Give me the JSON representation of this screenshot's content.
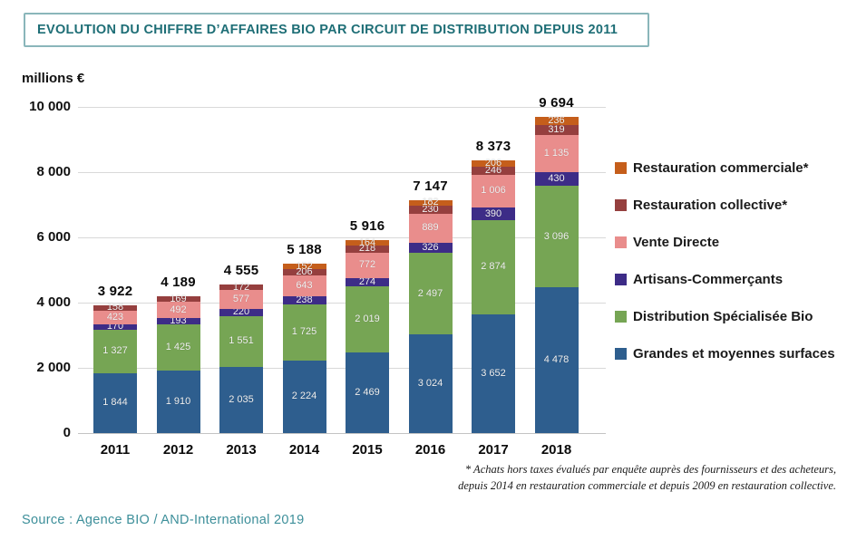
{
  "header": {
    "title": "EVOLUTION DU CHIFFRE D’AFFAIRES BIO PAR CIRCUIT DE DISTRIBUTION DEPUIS 2011"
  },
  "chart_data": {
    "type": "bar",
    "stacked": true,
    "title": "EVOLUTION DU CHIFFRE D’AFFAIRES BIO PAR CIRCUIT DE DISTRIBUTION DEPUIS 2011",
    "unit_label": "millions €",
    "categories": [
      "2011",
      "2012",
      "2013",
      "2014",
      "2015",
      "2016",
      "2017",
      "2018"
    ],
    "series": [
      {
        "name": "Grandes et moyennes surfaces",
        "color": "#2E5E8E",
        "values": [
          1844,
          1910,
          2035,
          2224,
          2469,
          3024,
          3652,
          4478
        ]
      },
      {
        "name": "Distribution Spécialisée Bio",
        "color": "#76A554",
        "values": [
          1327,
          1425,
          1551,
          1725,
          2019,
          2497,
          2874,
          3096
        ]
      },
      {
        "name": "Artisans-Commerçants",
        "color": "#3D2C87",
        "values": [
          170,
          193,
          220,
          238,
          274,
          326,
          390,
          430
        ]
      },
      {
        "name": "Vente Directe",
        "color": "#E98D8C",
        "values": [
          423,
          492,
          577,
          643,
          772,
          889,
          1006,
          1135
        ]
      },
      {
        "name": "Restauration collective*",
        "color": "#953F3E",
        "values": [
          158,
          169,
          172,
          206,
          218,
          230,
          246,
          319
        ]
      },
      {
        "name": "Restauration commerciale*",
        "color": "#C55E1B",
        "values": [
          null,
          null,
          null,
          152,
          164,
          182,
          206,
          236
        ]
      }
    ],
    "totals": [
      3922,
      4189,
      4555,
      5188,
      5916,
      7147,
      8373,
      9694
    ],
    "y_ticks": [
      0,
      2000,
      4000,
      6000,
      8000,
      10000
    ],
    "ylim": [
      0,
      10000
    ],
    "grid": true,
    "legend_position": "right",
    "legend_order_top_to_bottom": [
      "Restauration commerciale*",
      "Restauration collective*",
      "Vente Directe",
      "Artisans-Commerçants",
      "Distribution Spécialisée Bio",
      "Grandes et moyennes surfaces"
    ]
  },
  "footnote": {
    "line1": "* Achats hors taxes évalués par enquête auprès des fournisseurs et des acheteurs,",
    "line2": "depuis 2014 en restauration commerciale et  depuis 2009 en restauration collective."
  },
  "footer": {
    "source": "Source : Agence BIO / AND-International 2019"
  }
}
